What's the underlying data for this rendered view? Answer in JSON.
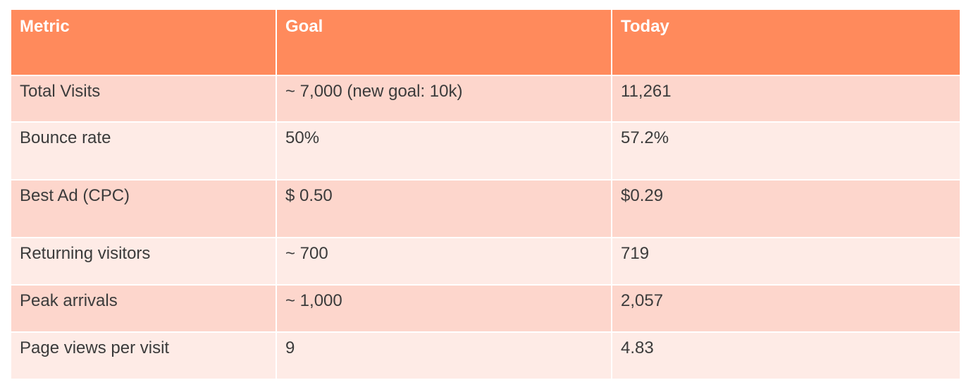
{
  "table": {
    "headers": [
      "Metric",
      "Goal",
      "Today"
    ],
    "rows": [
      [
        "Total Visits",
        "~ 7,000 (new goal: 10k)",
        "11,261"
      ],
      [
        "Bounce rate",
        "50%",
        "57.2%"
      ],
      [
        "Best Ad (CPC)",
        "$ 0.50",
        "$0.29"
      ],
      [
        "Returning visitors",
        "~ 700",
        "719"
      ],
      [
        "Peak arrivals",
        "~ 1,000",
        "2,057"
      ],
      [
        "Page views per visit",
        "9",
        "4.83"
      ]
    ]
  },
  "colors": {
    "header_bg": "#ff8a5c",
    "row_odd_bg": "#fdd6cc",
    "row_even_bg": "#feebe6",
    "header_text": "#ffffff",
    "body_text": "#3b3b3b"
  }
}
